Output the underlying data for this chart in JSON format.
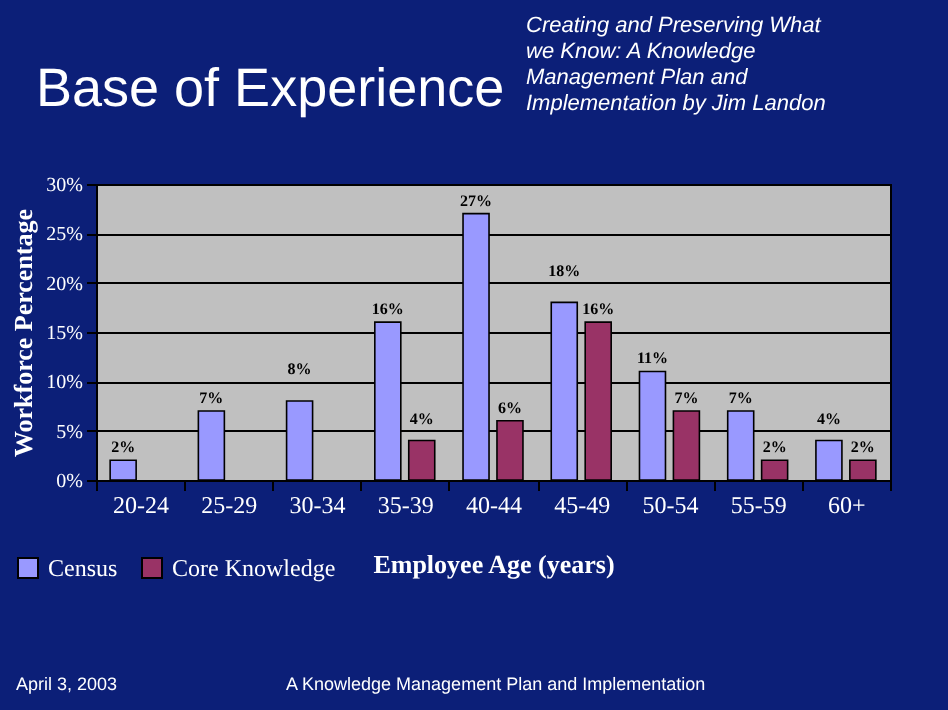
{
  "chart_data": {
    "type": "bar",
    "title": "Base of Experience",
    "subtitle": "Creating and Preserving What we Know: A Knowledge Management Plan and Implementation by Jim Landon",
    "xlabel": "Employee Age (years)",
    "ylabel": "Workforce Percentage",
    "categories": [
      "20-24",
      "25-29",
      "30-34",
      "35-39",
      "40-44",
      "45-49",
      "50-54",
      "55-59",
      "60+"
    ],
    "series": [
      {
        "name": "Census",
        "color": "#9999ff",
        "values": [
          2,
          7,
          8,
          16,
          27,
          18,
          11,
          7,
          4
        ],
        "value_labels": [
          "2%",
          "7%",
          "8%",
          "16%",
          "27%",
          "18%",
          "11%",
          "7%",
          "4%"
        ]
      },
      {
        "name": "Core Knowledge",
        "color": "#993366",
        "values": [
          null,
          null,
          null,
          4,
          6,
          16,
          7,
          2,
          2
        ],
        "value_labels": [
          null,
          null,
          null,
          "4%",
          "6%",
          "16%",
          "7%",
          "2%",
          "2%"
        ]
      }
    ],
    "ylim": [
      0,
      30
    ],
    "yticks": [
      {
        "value": 0,
        "label": "0%"
      },
      {
        "value": 5,
        "label": "5%"
      },
      {
        "value": 10,
        "label": "10%"
      },
      {
        "value": 15,
        "label": "15%"
      },
      {
        "value": 20,
        "label": "20%"
      },
      {
        "value": 25,
        "label": "25%"
      },
      {
        "value": 30,
        "label": "30%"
      }
    ],
    "grid": "y",
    "legend": "bottom left",
    "annotations": [
      "April 3, 2003",
      "A Knowledge Management Plan and Implementation"
    ]
  }
}
